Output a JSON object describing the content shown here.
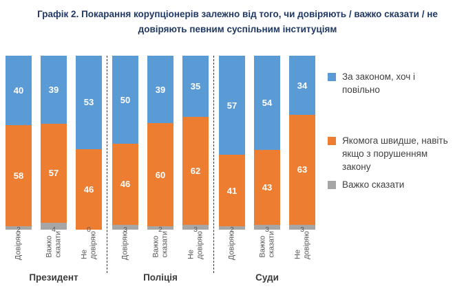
{
  "title": "Графік 2. Покарання корупціонерів залежно від того, чи довіряють / важко сказати / не довіряють певним суспільним інституціям",
  "colors": {
    "series_blue": "#5B9BD5",
    "series_orange": "#ED7D31",
    "series_gray": "#A6A6A6",
    "title_text": "#1F3864",
    "axis_text": "#595959"
  },
  "chart_data": {
    "type": "bar",
    "stacked": true,
    "unit": "%",
    "ylim": [
      0,
      100
    ],
    "grid": false,
    "series": [
      {
        "name": "За законом, хоч і повільно",
        "color": "#5B9BD5"
      },
      {
        "name": "Якомога швидше, навіть якщо з порушенням закону",
        "color": "#ED7D31"
      },
      {
        "name": "Важко сказати",
        "color": "#A6A6A6"
      }
    ],
    "groups": [
      {
        "label": "Президент",
        "categories": [
          "Довіряю",
          "Важко\nсказати",
          "Не довіряю"
        ],
        "values": [
          [
            40,
            58,
            2
          ],
          [
            39,
            57,
            4
          ],
          [
            53,
            46,
            0
          ]
        ]
      },
      {
        "label": "Поліція",
        "categories": [
          "Довіряю",
          "Важко\nсказати",
          "Не довіряю"
        ],
        "values": [
          [
            50,
            46,
            3
          ],
          [
            39,
            60,
            2
          ],
          [
            35,
            62,
            3
          ]
        ]
      },
      {
        "label": "Суди",
        "categories": [
          "Довіряю",
          "Важко\nсказати",
          "Не довіряю"
        ],
        "values": [
          [
            57,
            41,
            2
          ],
          [
            54,
            43,
            3
          ],
          [
            34,
            63,
            3
          ]
        ]
      }
    ],
    "legend": {
      "position": "right",
      "items": [
        {
          "label": "За законом, хоч і\nповільно",
          "color": "#5B9BD5"
        },
        {
          "label": "Якомога швидше, навіть\nякщо з порушенням\nзакону",
          "color": "#ED7D31"
        },
        {
          "label": "Важко сказати",
          "color": "#A6A6A6"
        }
      ]
    }
  }
}
